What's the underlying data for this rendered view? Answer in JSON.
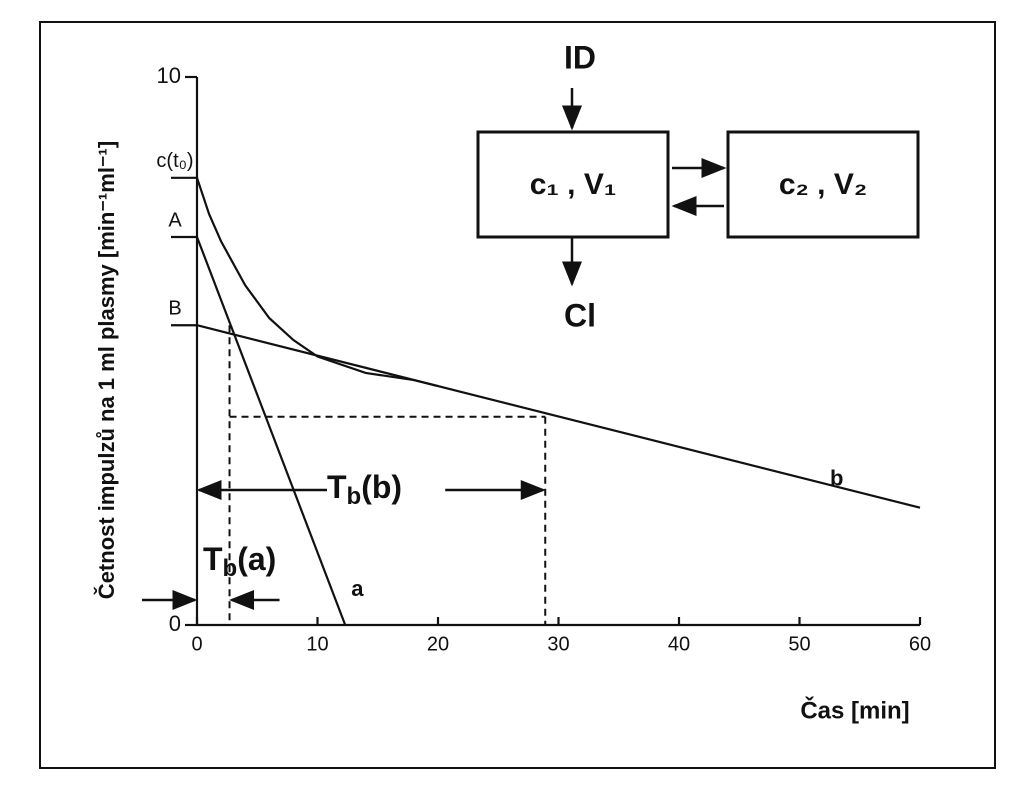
{
  "chart_data": {
    "type": "line",
    "y_label": "Četnost impulzů na 1 ml plasmy [min⁻¹ml⁻¹]",
    "x_label": "Čas [min]",
    "xlim": [
      0,
      60
    ],
    "ylim": [
      0,
      10
    ],
    "xticks": [
      0,
      10,
      20,
      30,
      40,
      50,
      60
    ],
    "yticks": [
      0,
      10
    ],
    "series": [
      {
        "name": "a",
        "x": [
          0,
          12.3
        ],
        "values": [
          7.08,
          0
        ]
      },
      {
        "name": "b",
        "x": [
          0,
          60
        ],
        "values": [
          5.47,
          2.14
        ]
      },
      {
        "x": [
          0,
          1,
          2,
          4,
          6,
          8,
          10,
          14,
          18,
          20
        ],
        "values": [
          8.16,
          7.5,
          7.0,
          6.2,
          5.6,
          5.2,
          4.9,
          4.6,
          4.47,
          4.36
        ]
      }
    ],
    "levels": [
      {
        "label": "c(t₀)",
        "value": 8.16
      },
      {
        "label": "A",
        "value": 7.08
      },
      {
        "label": "B",
        "value": 5.47
      }
    ],
    "half_lives": {
      "level": 3.8,
      "a": {
        "value": 2.7,
        "main": "T",
        "sub": "b",
        "rest": "(a)"
      },
      "b": {
        "value": 28.9,
        "main": "T",
        "sub": "b",
        "rest": "(b)"
      }
    }
  },
  "diagram": {
    "input": "ID",
    "output": "Cl",
    "nodes": [
      {
        "label": "c₁ , V₁"
      },
      {
        "label": "c₂ , V₂"
      }
    ]
  }
}
